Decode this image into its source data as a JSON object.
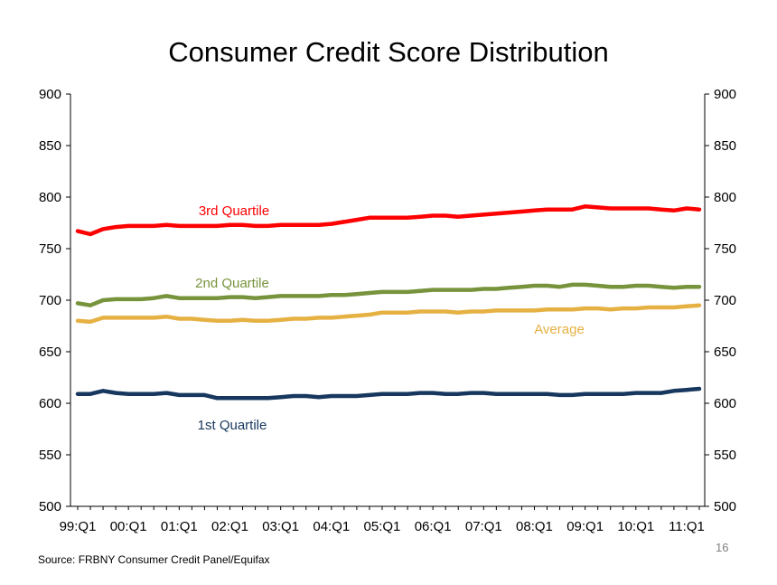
{
  "slide": {
    "source": "Source: FRBNY Consumer Credit Panel/Equifax",
    "page_number": "16"
  },
  "chart_data": {
    "type": "line",
    "title": "Consumer Credit Score Distribution",
    "xlabel": "",
    "ylabel": "",
    "ylim": [
      500,
      900
    ],
    "y_ticks": [
      500,
      550,
      600,
      650,
      700,
      750,
      800,
      850,
      900
    ],
    "secondary_y_axis": true,
    "grid": false,
    "legend": "inline labels",
    "x_tick_labels": [
      "99:Q1",
      "00:Q1",
      "01:Q1",
      "02:Q1",
      "03:Q1",
      "04:Q1",
      "05:Q1",
      "06:Q1",
      "07:Q1",
      "08:Q1",
      "09:Q1",
      "10:Q1",
      "11:Q1"
    ],
    "x": [
      "99:Q1",
      "99:Q2",
      "99:Q3",
      "99:Q4",
      "00:Q1",
      "00:Q2",
      "00:Q3",
      "00:Q4",
      "01:Q1",
      "01:Q2",
      "01:Q3",
      "01:Q4",
      "02:Q1",
      "02:Q2",
      "02:Q3",
      "02:Q4",
      "03:Q1",
      "03:Q2",
      "03:Q3",
      "03:Q4",
      "04:Q1",
      "04:Q2",
      "04:Q3",
      "04:Q4",
      "05:Q1",
      "05:Q2",
      "05:Q3",
      "05:Q4",
      "06:Q1",
      "06:Q2",
      "06:Q3",
      "06:Q4",
      "07:Q1",
      "07:Q2",
      "07:Q3",
      "07:Q4",
      "08:Q1",
      "08:Q2",
      "08:Q3",
      "08:Q4",
      "09:Q1",
      "09:Q2",
      "09:Q3",
      "09:Q4",
      "10:Q1",
      "10:Q2",
      "10:Q3",
      "10:Q4",
      "11:Q1",
      "11:Q2"
    ],
    "series": [
      {
        "name": "3rd Quartile",
        "color": "#ff0000",
        "values": [
          767,
          764,
          769,
          771,
          772,
          772,
          772,
          773,
          772,
          772,
          772,
          772,
          773,
          773,
          772,
          772,
          773,
          773,
          773,
          773,
          774,
          776,
          778,
          780,
          780,
          780,
          780,
          781,
          782,
          782,
          781,
          782,
          783,
          784,
          785,
          786,
          787,
          788,
          788,
          788,
          791,
          790,
          789,
          789,
          789,
          789,
          788,
          787,
          789,
          788
        ]
      },
      {
        "name": "2nd Quartile",
        "color": "#77933c",
        "values": [
          697,
          695,
          700,
          701,
          701,
          701,
          702,
          704,
          702,
          702,
          702,
          702,
          703,
          703,
          702,
          703,
          704,
          704,
          704,
          704,
          705,
          705,
          706,
          707,
          708,
          708,
          708,
          709,
          710,
          710,
          710,
          710,
          711,
          711,
          712,
          713,
          714,
          714,
          713,
          715,
          715,
          714,
          713,
          713,
          714,
          714,
          713,
          712,
          713,
          713
        ]
      },
      {
        "name": "Average",
        "color": "#e6b143",
        "values": [
          680,
          679,
          683,
          683,
          683,
          683,
          683,
          684,
          682,
          682,
          681,
          680,
          680,
          681,
          680,
          680,
          681,
          682,
          682,
          683,
          683,
          684,
          685,
          686,
          688,
          688,
          688,
          689,
          689,
          689,
          688,
          689,
          689,
          690,
          690,
          690,
          690,
          691,
          691,
          691,
          692,
          692,
          691,
          692,
          692,
          693,
          693,
          693,
          694,
          695
        ]
      },
      {
        "name": "1st Quartile",
        "color": "#17375e",
        "values": [
          609,
          609,
          612,
          610,
          609,
          609,
          609,
          610,
          608,
          608,
          608,
          605,
          605,
          605,
          605,
          605,
          606,
          607,
          607,
          606,
          607,
          607,
          607,
          608,
          609,
          609,
          609,
          610,
          610,
          609,
          609,
          610,
          610,
          609,
          609,
          609,
          609,
          609,
          608,
          608,
          609,
          609,
          609,
          609,
          610,
          610,
          610,
          612,
          613,
          614
        ]
      }
    ]
  }
}
